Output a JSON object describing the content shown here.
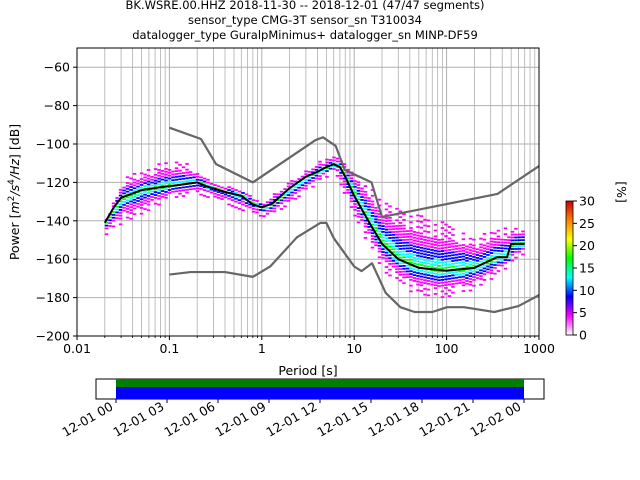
{
  "chart_data": [
    {
      "type": "line",
      "title_lines": [
        "BK.WSRE.00.HHZ   2018-11-30 -- 2018-12-01  (47/47 segments)",
        "sensor_type CMG-3T sensor_sn T310034",
        "datalogger_type GuralpMinimus+ datalogger_sn MINP-DF59"
      ],
      "xlabel": "Period [s]",
      "ylabel_parts": [
        "Power [",
        "m",
        "2",
        "/s",
        "4",
        "/Hz",
        "] [dB]"
      ],
      "xscale": "log",
      "xlim": [
        0.01,
        1000
      ],
      "ylim": [
        -200,
        -50
      ],
      "x_ticks": [
        {
          "value": 0.01,
          "label": "0.01"
        },
        {
          "value": 0.1,
          "label": "0.1"
        },
        {
          "value": 1,
          "label": "1"
        },
        {
          "value": 10,
          "label": "10"
        },
        {
          "value": 100,
          "label": "100"
        },
        {
          "value": 1000,
          "label": "1000"
        }
      ],
      "y_ticks": [
        -60,
        -80,
        -100,
        -120,
        -140,
        -160,
        -180,
        -200
      ],
      "grid": true,
      "series": [
        {
          "role": "high_noise_model",
          "color": "#666666",
          "points": [
            [
              0.1,
              -91.5
            ],
            [
              0.22,
              -97.4
            ],
            [
              0.32,
              -110.5
            ],
            [
              0.8,
              -120
            ],
            [
              3.8,
              -98
            ],
            [
              4.6,
              -96.5
            ],
            [
              6.3,
              -101
            ],
            [
              7.9,
              -113.5
            ],
            [
              15.4,
              -120
            ],
            [
              20,
              -138
            ],
            [
              354.8,
              -126
            ],
            [
              1000,
              -111.5
            ]
          ]
        },
        {
          "role": "low_noise_model",
          "color": "#666666",
          "points": [
            [
              0.1,
              -168
            ],
            [
              0.17,
              -166.7
            ],
            [
              0.4,
              -166.7
            ],
            [
              0.8,
              -169.2
            ],
            [
              1.24,
              -163.7
            ],
            [
              2.4,
              -148.6
            ],
            [
              4.3,
              -141.1
            ],
            [
              5,
              -141.1
            ],
            [
              6,
              -149
            ],
            [
              10,
              -163.8
            ],
            [
              12,
              -166.2
            ],
            [
              15.6,
              -162.1
            ],
            [
              21.9,
              -177.5
            ],
            [
              31.6,
              -185
            ],
            [
              45,
              -187.5
            ],
            [
              70,
              -187.5
            ],
            [
              101,
              -185
            ],
            [
              154,
              -185
            ],
            [
              328,
              -187.5
            ],
            [
              600,
              -184.4
            ],
            [
              1000,
              -178.7
            ]
          ]
        },
        {
          "role": "mean_psd",
          "color": "#000000",
          "points": [
            [
              0.02,
              -141
            ],
            [
              0.025,
              -133
            ],
            [
              0.03,
              -128
            ],
            [
              0.05,
              -124
            ],
            [
              0.08,
              -122.5
            ],
            [
              0.12,
              -121.5
            ],
            [
              0.2,
              -120
            ],
            [
              0.25,
              -122
            ],
            [
              0.4,
              -125
            ],
            [
              0.6,
              -127
            ],
            [
              0.8,
              -131.5
            ],
            [
              1.0,
              -133
            ],
            [
              1.3,
              -131
            ],
            [
              2,
              -123
            ],
            [
              3,
              -117
            ],
            [
              4,
              -114.5
            ],
            [
              5,
              -112
            ],
            [
              6,
              -110.5
            ],
            [
              7,
              -112
            ],
            [
              8,
              -117
            ],
            [
              10,
              -127
            ],
            [
              15,
              -142
            ],
            [
              20,
              -152
            ],
            [
              30,
              -160
            ],
            [
              50,
              -164.5
            ],
            [
              100,
              -166
            ],
            [
              200,
              -164.5
            ],
            [
              350,
              -159
            ],
            [
              450,
              -159
            ],
            [
              500,
              -152
            ],
            [
              700,
              -152
            ]
          ]
        }
      ],
      "psd_spread": {
        "upper": [
          [
            0.02,
            -139
          ],
          [
            0.03,
            -118
          ],
          [
            0.06,
            -112
          ],
          [
            0.09,
            -108
          ],
          [
            0.15,
            -110
          ],
          [
            0.3,
            -120
          ],
          [
            0.6,
            -123
          ],
          [
            1,
            -130
          ],
          [
            2,
            -118
          ],
          [
            5,
            -106
          ],
          [
            7,
            -107
          ],
          [
            12,
            -118
          ],
          [
            20,
            -130
          ],
          [
            50,
            -137
          ],
          [
            100,
            -141
          ],
          [
            200,
            -148
          ],
          [
            400,
            -143
          ],
          [
            700,
            -143
          ]
        ],
        "lower": [
          [
            0.02,
            -147
          ],
          [
            0.03,
            -141
          ],
          [
            0.06,
            -134
          ],
          [
            0.1,
            -128
          ],
          [
            0.2,
            -126
          ],
          [
            0.4,
            -131
          ],
          [
            0.8,
            -137
          ],
          [
            1.2,
            -138
          ],
          [
            2,
            -130
          ],
          [
            4,
            -120
          ],
          [
            6,
            -114
          ],
          [
            10,
            -140
          ],
          [
            20,
            -166
          ],
          [
            40,
            -177
          ],
          [
            80,
            -180
          ],
          [
            150,
            -178
          ],
          [
            300,
            -170
          ],
          [
            500,
            -162
          ],
          [
            700,
            -156
          ]
        ]
      },
      "colorbar": {
        "label": "[%]",
        "min": 0,
        "max": 30,
        "ticks": [
          0,
          5,
          10,
          15,
          20,
          25,
          30
        ],
        "colormap": [
          "#ffffff",
          "#ff00ff",
          "#0000ff",
          "#00ffff",
          "#00ff00",
          "#ffff00",
          "#ff8000",
          "#cc0000"
        ]
      }
    },
    {
      "type": "timeline",
      "tick_labels": [
        "12-01 00",
        "12-01 03",
        "12-01 06",
        "12-01 09",
        "12-01 12",
        "12-01 15",
        "12-01 18",
        "12-01 21",
        "12-02 00"
      ],
      "data_coverage_color": "#008000",
      "processed_color": "#0000ff",
      "coverage_start_frac": 0.0,
      "coverage_end_frac": 1.0
    }
  ]
}
